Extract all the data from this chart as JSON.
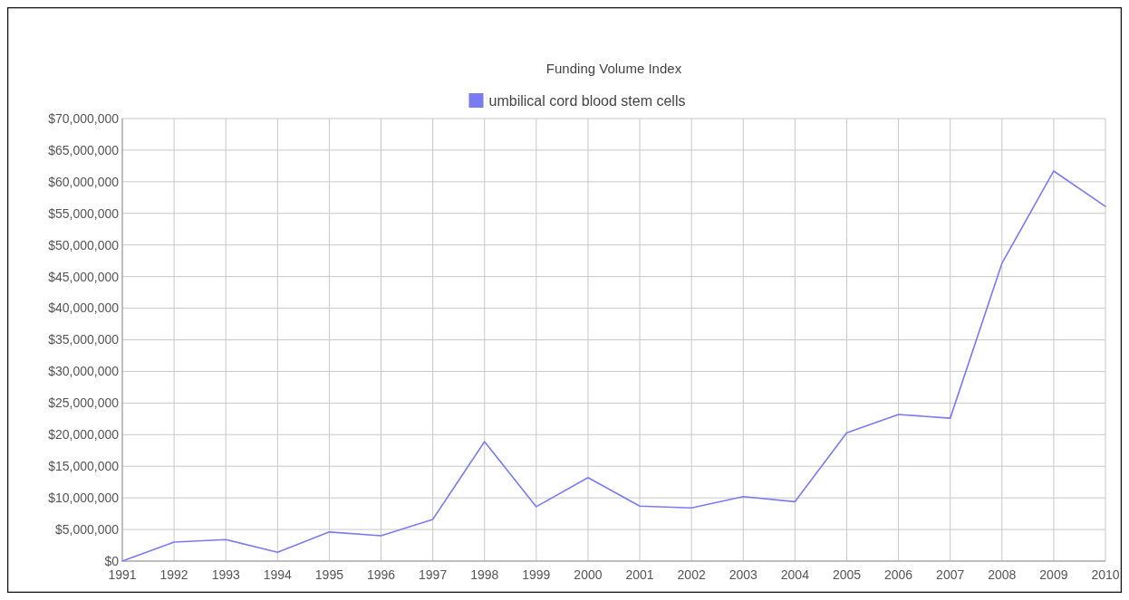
{
  "chart_data": {
    "type": "line",
    "title": "Funding Volume Index",
    "categories": [
      "1991",
      "1992",
      "1993",
      "1994",
      "1995",
      "1996",
      "1997",
      "1998",
      "1999",
      "2000",
      "2001",
      "2002",
      "2003",
      "2004",
      "2005",
      "2006",
      "2007",
      "2008",
      "2009",
      "2010"
    ],
    "series": [
      {
        "name": "umbilical cord blood stem cells",
        "color": "#7b7bf0",
        "values": [
          0,
          3000000,
          3400000,
          1400000,
          4600000,
          4000000,
          6600000,
          18900000,
          8600000,
          13200000,
          8700000,
          8400000,
          10200000,
          9400000,
          20300000,
          23200000,
          22600000,
          47100000,
          61700000,
          56100000
        ]
      }
    ],
    "ylim": [
      0,
      70000000
    ],
    "yticks": [
      {
        "value": 0,
        "label": "$0"
      },
      {
        "value": 5000000,
        "label": "$5,000,000"
      },
      {
        "value": 10000000,
        "label": "$10,000,000"
      },
      {
        "value": 15000000,
        "label": "$15,000,000"
      },
      {
        "value": 20000000,
        "label": "$20,000,000"
      },
      {
        "value": 25000000,
        "label": "$25,000,000"
      },
      {
        "value": 30000000,
        "label": "$30,000,000"
      },
      {
        "value": 35000000,
        "label": "$35,000,000"
      },
      {
        "value": 40000000,
        "label": "$40,000,000"
      },
      {
        "value": 45000000,
        "label": "$45,000,000"
      },
      {
        "value": 50000000,
        "label": "$50,000,000"
      },
      {
        "value": 55000000,
        "label": "$55,000,000"
      },
      {
        "value": 60000000,
        "label": "$60,000,000"
      },
      {
        "value": 65000000,
        "label": "$65,000,000"
      },
      {
        "value": 70000000,
        "label": "$70,000,000"
      }
    ],
    "grid": true,
    "legend": "top",
    "marker": "none",
    "line_style": "solid"
  }
}
